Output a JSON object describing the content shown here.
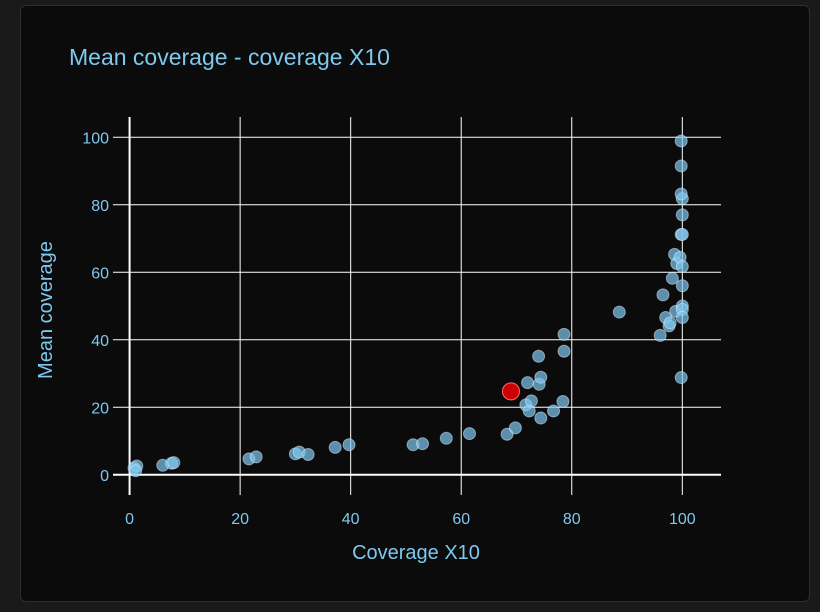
{
  "chart_data": {
    "type": "scatter",
    "title": "Mean coverage - coverage X10",
    "xlabel": "Coverage X10",
    "ylabel": "Mean coverage",
    "xlim": [
      -3,
      107
    ],
    "ylim": [
      -6,
      106
    ],
    "xticks": [
      0,
      20,
      40,
      60,
      80,
      100
    ],
    "yticks": [
      0,
      20,
      40,
      60,
      80,
      100
    ],
    "grid": true,
    "colors": {
      "point": "#7fc8ef",
      "highlight": "#cc0000",
      "grid": "#ffffff",
      "text": "#7fc8ef"
    },
    "series": [
      {
        "points": [
          [
            0.8,
            2
          ],
          [
            1.3,
            2.6
          ],
          [
            1.1,
            1.2
          ],
          [
            6,
            2.8
          ],
          [
            7.6,
            3.4
          ],
          [
            8,
            3.6
          ],
          [
            21.6,
            4.7
          ],
          [
            22.9,
            5.3
          ],
          [
            30,
            6.2
          ],
          [
            30.7,
            6.7
          ],
          [
            32.3,
            6
          ],
          [
            37.2,
            8.1
          ],
          [
            39.7,
            8.9
          ],
          [
            51.3,
            8.9
          ],
          [
            53,
            9.2
          ],
          [
            57.3,
            10.8
          ],
          [
            61.5,
            12.2
          ],
          [
            68.3,
            12
          ],
          [
            69.8,
            13.9
          ],
          [
            71.7,
            20.7
          ],
          [
            72.3,
            18.9
          ],
          [
            72.7,
            21.9
          ],
          [
            72,
            27.3
          ],
          [
            74.1,
            26.8
          ],
          [
            74.4,
            28.9
          ],
          [
            74,
            35.1
          ],
          [
            74.4,
            16.8
          ],
          [
            76.7,
            18.9
          ],
          [
            78.4,
            21.7
          ],
          [
            78.6,
            36.6
          ],
          [
            78.6,
            41.6
          ],
          [
            88.6,
            48.2
          ],
          [
            96,
            41.3
          ],
          [
            96.5,
            53.3
          ],
          [
            97,
            46.6
          ],
          [
            97.6,
            44.1
          ],
          [
            98.2,
            58.2
          ],
          [
            98.6,
            65.3
          ],
          [
            99,
            62.6
          ],
          [
            98.8,
            48.4
          ],
          [
            97.8,
            45
          ],
          [
            99.6,
            64.4
          ],
          [
            100,
            61.7
          ],
          [
            100,
            56
          ],
          [
            100,
            50
          ],
          [
            100,
            49
          ],
          [
            100,
            46.6
          ],
          [
            99.8,
            71.2
          ],
          [
            100,
            71.2
          ],
          [
            100,
            77
          ],
          [
            100,
            81.8
          ],
          [
            99.8,
            83.2
          ],
          [
            99.8,
            91.5
          ],
          [
            99.8,
            98.9
          ],
          [
            99.8,
            28.8
          ]
        ]
      },
      {
        "highlight": true,
        "points": [
          [
            69,
            24.7
          ]
        ]
      }
    ]
  }
}
